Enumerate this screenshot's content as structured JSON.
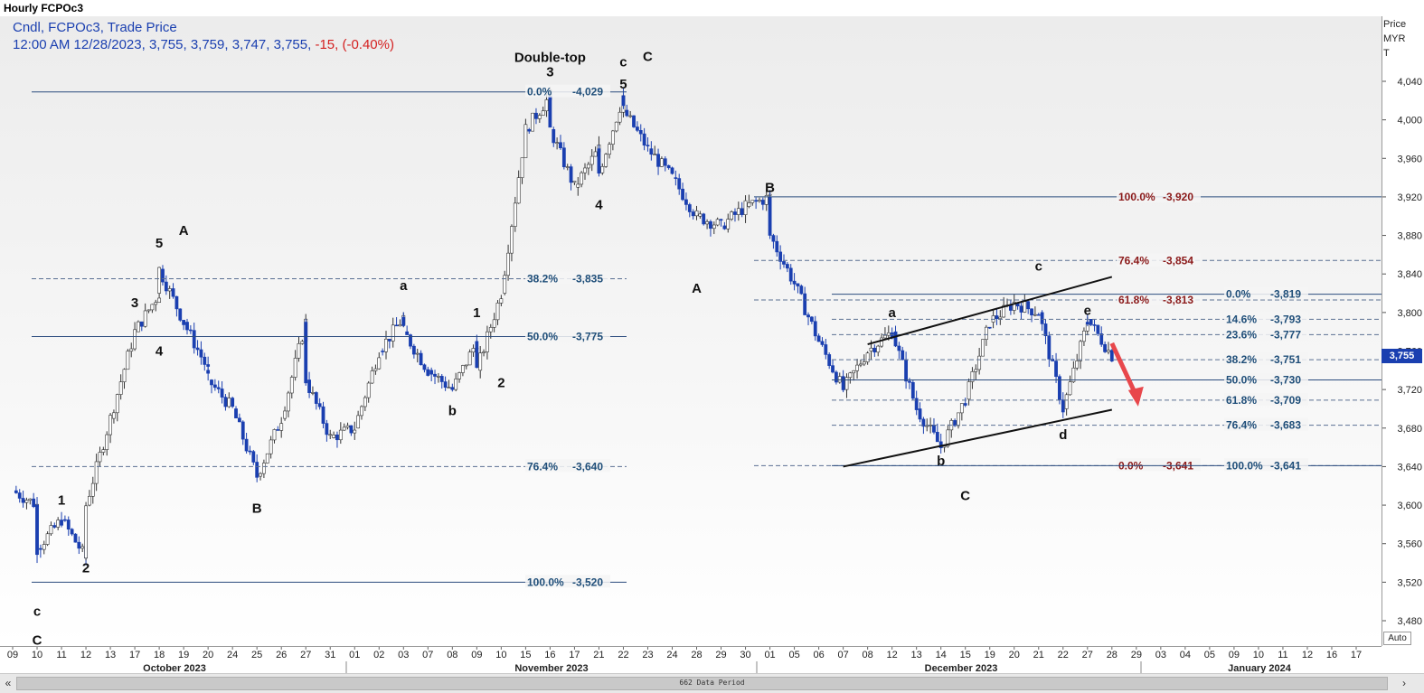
{
  "window_title": "Hourly FCPOc3",
  "info_line1": "Cndl, FCPOc3, Trade Price",
  "info_line2_main": "12:00 AM 12/28/2023, 3,755, 3,759, 3,747, 3,755,",
  "info_line2_change": "-15, (-0.40%)",
  "price_axis_header": [
    "Price",
    "MYR",
    "T"
  ],
  "last_price_tag": "3,755",
  "auto_label": "Auto",
  "scroll_status": "662 Data Period",
  "scroll_left_icon": "«",
  "scroll_prev_icon": "‹",
  "scroll_next_icon": "›",
  "colors": {
    "candle": "#1a3fb0",
    "fib_blue": "#1f4e79",
    "fib_red": "#8b1a1a",
    "arrow": "#e8474b",
    "label": "#111111"
  },
  "chart_data": {
    "type": "candlestick",
    "ylim": [
      3440,
      4080
    ],
    "y_ticks": [
      3480,
      3520,
      3560,
      3600,
      3640,
      3680,
      3720,
      3760,
      3800,
      3840,
      3880,
      3920,
      3960,
      4000,
      4040
    ],
    "y_tick_labels": [
      "3,480",
      "3,520",
      "3,560",
      "3,600",
      "3,640",
      "3,680",
      "3,720",
      "3,760",
      "3,800",
      "3,840",
      "3,880",
      "3,920",
      "3,960",
      "4,000",
      "4,040"
    ],
    "x_dates": [
      "09",
      "10",
      "11",
      "12",
      "13",
      "17",
      "18",
      "19",
      "20",
      "24",
      "25",
      "26",
      "27",
      "31",
      "01",
      "02",
      "03",
      "07",
      "08",
      "09",
      "10",
      "15",
      "16",
      "17",
      "21",
      "22",
      "23",
      "24",
      "28",
      "29",
      "30",
      "01",
      "05",
      "06",
      "07",
      "08",
      "12",
      "13",
      "14",
      "15",
      "19",
      "20",
      "21",
      "22",
      "27",
      "28",
      "29",
      "03",
      "04",
      "05",
      "09",
      "10",
      "11",
      "12",
      "16",
      "17"
    ],
    "month_labels": [
      "October 2023",
      "November 2023",
      "December 2023",
      "January 2024"
    ],
    "price_path": [
      [
        "09",
        3615
      ],
      [
        "10",
        3600
      ],
      [
        "10",
        3555
      ],
      [
        "11",
        3585
      ],
      [
        "12",
        3545
      ],
      [
        "12",
        3600
      ],
      [
        "13",
        3690
      ],
      [
        "17",
        3780
      ],
      [
        "18",
        3820
      ],
      [
        "18",
        3845
      ],
      [
        "19",
        3790
      ],
      [
        "20",
        3740
      ],
      [
        "20",
        3730
      ],
      [
        "24",
        3700
      ],
      [
        "25",
        3630
      ],
      [
        "26",
        3690
      ],
      [
        "27",
        3790
      ],
      [
        "27",
        3730
      ],
      [
        "31",
        3670
      ],
      [
        "01",
        3680
      ],
      [
        "02",
        3760
      ],
      [
        "03",
        3795
      ],
      [
        "03",
        3780
      ],
      [
        "07",
        3740
      ],
      [
        "08",
        3720
      ],
      [
        "09",
        3770
      ],
      [
        "09",
        3740
      ],
      [
        "10",
        3820
      ],
      [
        "15",
        3990
      ],
      [
        "16",
        4025
      ],
      [
        "16",
        3990
      ],
      [
        "17",
        3930
      ],
      [
        "21",
        3970
      ],
      [
        "21",
        3945
      ],
      [
        "22",
        4025
      ],
      [
        "22",
        4010
      ],
      [
        "23",
        3970
      ],
      [
        "24",
        3940
      ],
      [
        "28",
        3900
      ],
      [
        "29",
        3890
      ],
      [
        "30",
        3910
      ],
      [
        "01",
        3920
      ],
      [
        "01",
        3880
      ],
      [
        "05",
        3830
      ],
      [
        "06",
        3770
      ],
      [
        "07",
        3720
      ],
      [
        "08",
        3760
      ],
      [
        "12",
        3780
      ],
      [
        "13",
        3700
      ],
      [
        "14",
        3660
      ],
      [
        "15",
        3710
      ],
      [
        "19",
        3790
      ],
      [
        "20",
        3810
      ],
      [
        "21",
        3800
      ],
      [
        "22",
        3700
      ],
      [
        "27",
        3790
      ],
      [
        "27",
        3793
      ],
      [
        "28",
        3755
      ]
    ],
    "fib_sets": [
      {
        "color": "blue",
        "levels": [
          {
            "label": "0.0%",
            "value": 4029,
            "text": "4,029"
          },
          {
            "label": "38.2%",
            "value": 3835,
            "text": "3,835"
          },
          {
            "label": "50.0%",
            "value": 3775,
            "text": "3,775"
          },
          {
            "label": "76.4%",
            "value": 3640,
            "text": "3,640"
          },
          {
            "label": "100.0%",
            "value": 3520,
            "text": "3,520"
          }
        ]
      },
      {
        "color": "red",
        "levels": [
          {
            "label": "100.0%",
            "value": 3920,
            "text": "3,920"
          },
          {
            "label": "76.4%",
            "value": 3854,
            "text": "3,854"
          },
          {
            "label": "61.8%",
            "value": 3813,
            "text": "3,813"
          },
          {
            "label": "0.0%",
            "value": 3641,
            "text": "3,641"
          }
        ]
      },
      {
        "color": "blue",
        "levels": [
          {
            "label": "0.0%",
            "value": 3819,
            "text": "3,819"
          },
          {
            "label": "14.6%",
            "value": 3793,
            "text": "3,793"
          },
          {
            "label": "23.6%",
            "value": 3777,
            "text": "3,777"
          },
          {
            "label": "38.2%",
            "value": 3751,
            "text": "3,751"
          },
          {
            "label": "50.0%",
            "value": 3730,
            "text": "3,730"
          },
          {
            "label": "61.8%",
            "value": 3709,
            "text": "3,709"
          },
          {
            "label": "76.4%",
            "value": 3683,
            "text": "3,683"
          },
          {
            "label": "100.0%",
            "value": 3641,
            "text": "3,641"
          }
        ]
      }
    ],
    "annotations": [
      {
        "text": "Double-top",
        "date": "16",
        "price": 4065
      },
      {
        "text": "C",
        "date": "10",
        "price": 3460
      },
      {
        "text": "c",
        "date": "10",
        "price": 3490
      },
      {
        "text": "1",
        "date": "11",
        "price": 3605
      },
      {
        "text": "2",
        "date": "12",
        "price": 3535
      },
      {
        "text": "3",
        "date": "17",
        "price": 3810
      },
      {
        "text": "4",
        "date": "18",
        "price": 3760
      },
      {
        "text": "5",
        "date": "18",
        "price": 3872
      },
      {
        "text": "A",
        "date": "19",
        "price": 3885
      },
      {
        "text": "B",
        "date": "25",
        "price": 3597
      },
      {
        "text": "a",
        "date": "03",
        "price": 3828
      },
      {
        "text": "b",
        "date": "08",
        "price": 3698
      },
      {
        "text": "1",
        "date": "09",
        "price": 3800
      },
      {
        "text": "2",
        "date": "10",
        "price": 3727
      },
      {
        "text": "3",
        "date": "16",
        "price": 4050
      },
      {
        "text": "c",
        "date": "22",
        "price": 4060
      },
      {
        "text": "C",
        "date": "23",
        "price": 4066
      },
      {
        "text": "5",
        "date": "22",
        "price": 4037
      },
      {
        "text": "4",
        "date": "21",
        "price": 3912
      },
      {
        "text": "A",
        "date": "28",
        "price": 3825
      },
      {
        "text": "B",
        "date": "01",
        "price": 3930
      },
      {
        "text": "a",
        "date": "12",
        "price": 3800
      },
      {
        "text": "c",
        "date": "21",
        "price": 3848
      },
      {
        "text": "e",
        "date": "27",
        "price": 3802
      },
      {
        "text": "b",
        "date": "14",
        "price": 3646
      },
      {
        "text": "d",
        "date": "22",
        "price": 3673
      },
      {
        "text": "C",
        "date": "15",
        "price": 3610
      }
    ],
    "channel_lines": [
      {
        "from": [
          "07",
          3640
        ],
        "to": [
          "28",
          3699
        ]
      },
      {
        "from": [
          "08",
          3767
        ],
        "to": [
          "28",
          3837
        ]
      }
    ],
    "arrow": {
      "from": [
        "28",
        3768
      ],
      "to": [
        "29",
        3708
      ]
    }
  }
}
